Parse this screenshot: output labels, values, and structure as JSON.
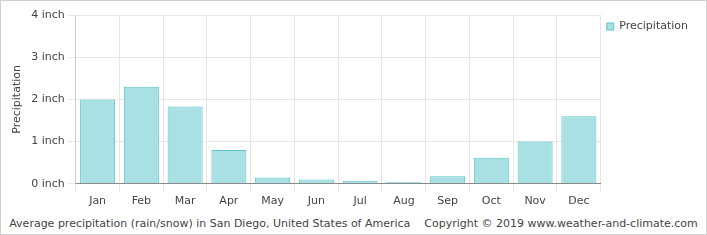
{
  "chart_data": {
    "type": "bar",
    "caption": "Average precipitation (rain/snow) in San Diego, United States of America",
    "credit": "Copyright © 2019 www.weather-and-climate.com",
    "y_label": "Precipitation",
    "categories": [
      "Jan",
      "Feb",
      "Mar",
      "Apr",
      "May",
      "Jun",
      "Jul",
      "Aug",
      "Sep",
      "Oct",
      "Nov",
      "Dec"
    ],
    "series": [
      {
        "name": "Precipitation",
        "color": "#a8e0e4",
        "values": [
          2.0,
          2.3,
          1.83,
          0.8,
          0.15,
          0.1,
          0.07,
          0.05,
          0.18,
          0.62,
          1.0,
          1.6
        ]
      }
    ],
    "ylim": [
      0,
      4
    ],
    "yticks": [
      {
        "value": 0,
        "label": "0 inch"
      },
      {
        "value": 1,
        "label": "1 inch"
      },
      {
        "value": 2,
        "label": "2 inch"
      },
      {
        "value": 3,
        "label": "3 inch"
      },
      {
        "value": 4,
        "label": "4 inch"
      }
    ],
    "grid": true,
    "legend": "top right"
  }
}
